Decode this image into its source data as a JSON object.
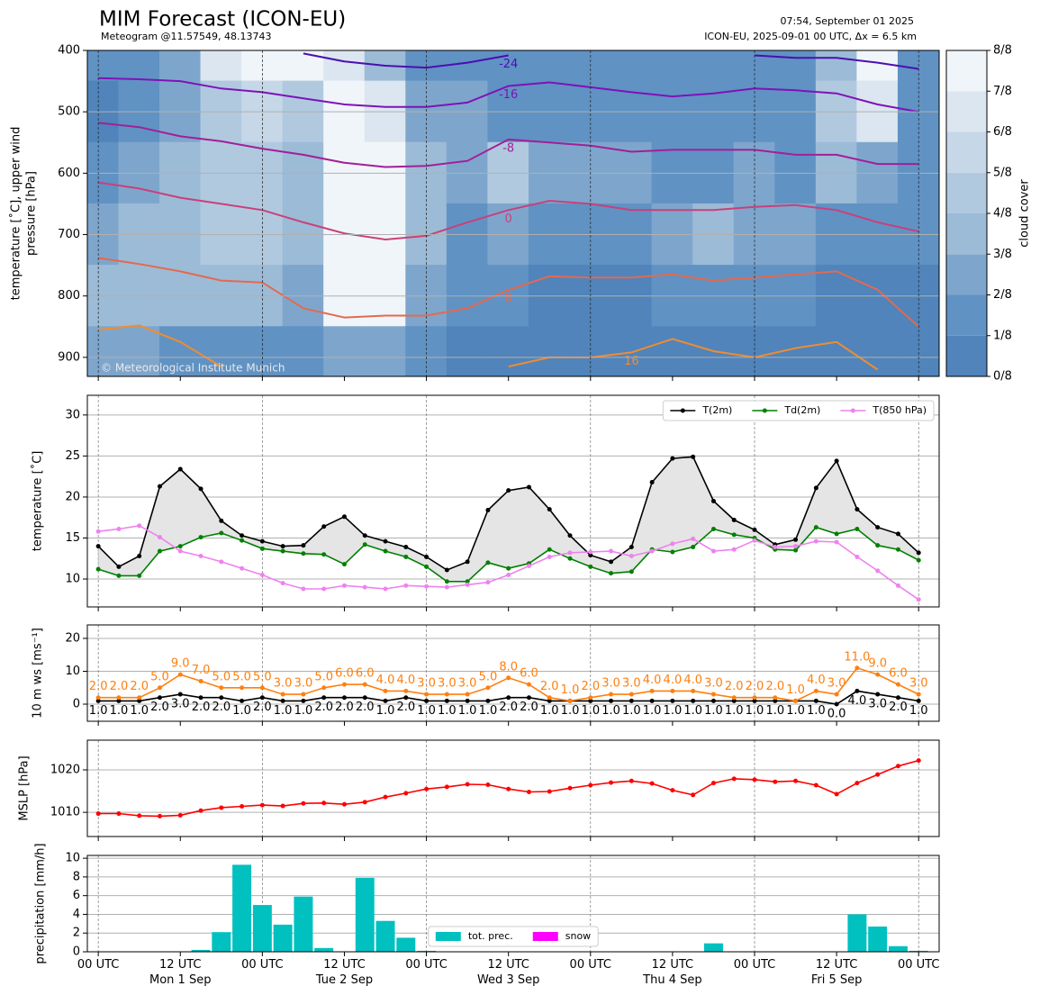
{
  "header": {
    "title": "MIM Forecast (ICON-EU)",
    "subtitle": "Meteogram @11.57549, 48.13743",
    "issued": "07:54, September 01 2025",
    "run": "ICON-EU, 2025-09-01 00 UTC, Δx = 6.5 km",
    "credit": "© Meteorological Institute Munich"
  },
  "chart_data": [
    {
      "type": "contour",
      "ylabel": [
        "temperature [˚C], upper wind",
        "pressure [hPa]"
      ],
      "x": [
        0,
        6,
        12,
        18,
        24,
        30,
        36,
        42,
        48,
        54,
        60,
        66,
        72,
        78,
        84,
        90,
        96,
        102,
        108,
        114,
        120
      ],
      "levels": [
        400,
        500,
        600,
        700,
        800,
        900
      ],
      "z": [
        [
          1,
          0,
          1,
          2,
          3,
          2
        ],
        [
          1,
          1,
          2,
          3,
          3,
          2
        ],
        [
          2,
          2,
          3,
          3,
          3,
          1
        ],
        [
          6,
          4,
          4,
          4,
          3,
          1
        ],
        [
          8,
          5,
          4,
          4,
          3,
          1
        ],
        [
          8,
          4,
          3,
          3,
          2,
          1
        ],
        [
          6,
          7,
          8,
          8,
          8,
          2
        ],
        [
          3,
          6,
          7,
          8,
          7,
          2
        ],
        [
          1,
          2,
          3,
          3,
          2,
          1
        ],
        [
          1,
          2,
          2,
          1,
          1,
          0
        ],
        [
          1,
          1,
          4,
          2,
          1,
          0
        ],
        [
          1,
          1,
          2,
          1,
          0,
          0
        ],
        [
          1,
          1,
          2,
          1,
          0,
          0
        ],
        [
          1,
          1,
          2,
          1,
          0,
          0
        ],
        [
          1,
          1,
          1,
          2,
          1,
          0
        ],
        [
          1,
          1,
          1,
          3,
          1,
          0
        ],
        [
          1,
          1,
          2,
          2,
          1,
          0
        ],
        [
          1,
          1,
          1,
          2,
          1,
          0
        ],
        [
          3,
          4,
          3,
          1,
          0,
          0
        ],
        [
          7,
          6,
          2,
          1,
          0,
          0
        ],
        [
          1,
          1,
          1,
          1,
          0,
          0
        ]
      ],
      "colorbar": {
        "label": "cloud cover",
        "clim": [
          0,
          8
        ],
        "ticks": [
          {
            "value": 0,
            "label": "0/8"
          },
          {
            "value": 1,
            "label": "1/8"
          },
          {
            "value": 2,
            "label": "2/8"
          },
          {
            "value": 3,
            "label": "3/8"
          },
          {
            "value": 4,
            "label": "4/8"
          },
          {
            "value": 5,
            "label": "5/8"
          },
          {
            "value": 6,
            "label": "6/8"
          },
          {
            "value": 7,
            "label": "7/8"
          },
          {
            "value": 8,
            "label": "8/8"
          }
        ],
        "colors": [
          "#5084bb",
          "#6092c4",
          "#7ea6cd",
          "#9cbbd7",
          "#b0c9df",
          "#c6d7e8",
          "#dce6f0",
          "#f0f5f9"
        ]
      },
      "isotherms": [
        {
          "level": -24,
          "color": "#4a0fb0",
          "values": [
            null,
            null,
            null,
            null,
            null,
            405,
            418,
            425,
            428,
            420,
            408,
            null,
            null,
            null,
            null,
            null,
            408,
            412,
            412,
            420,
            430
          ]
        },
        {
          "level": -16,
          "color": "#7f12b8",
          "values": [
            445,
            447,
            450,
            462,
            468,
            478,
            488,
            492,
            492,
            485,
            458,
            452,
            460,
            468,
            475,
            470,
            462,
            465,
            470,
            488,
            500
          ]
        },
        {
          "level": -8,
          "color": "#a21f99",
          "values": [
            518,
            525,
            540,
            548,
            560,
            570,
            583,
            590,
            588,
            580,
            545,
            550,
            555,
            565,
            562,
            562,
            562,
            570,
            570,
            585,
            585
          ]
        },
        {
          "level": 0,
          "color": "#c9407a",
          "values": [
            615,
            625,
            640,
            650,
            660,
            680,
            698,
            708,
            702,
            680,
            660,
            645,
            650,
            660,
            660,
            660,
            655,
            652,
            660,
            680,
            695
          ]
        },
        {
          "level": 8,
          "color": "#e4694f",
          "values": [
            738,
            748,
            760,
            775,
            778,
            820,
            835,
            832,
            832,
            820,
            790,
            768,
            770,
            770,
            765,
            775,
            770,
            765,
            760,
            790,
            850
          ]
        },
        {
          "level": 16,
          "color": "#f08c30",
          "values": [
            855,
            848,
            875,
            915,
            null,
            null,
            null,
            null,
            null,
            null,
            915,
            900,
            900,
            892,
            870,
            890,
            900,
            885,
            875,
            920,
            null
          ]
        }
      ],
      "xlim": [
        -1.6,
        123
      ],
      "xticks": [
        0,
        12,
        24,
        36,
        48,
        60,
        72,
        84,
        96,
        108,
        120
      ],
      "ylim": [
        931,
        400
      ],
      "yticks": [
        400,
        500,
        600,
        700,
        800,
        900
      ],
      "grid": true
    },
    {
      "type": "line",
      "ylabel": "temperature [˚C]",
      "x": [
        0,
        3,
        6,
        9,
        12,
        15,
        18,
        21,
        24,
        27,
        30,
        33,
        36,
        39,
        42,
        45,
        48,
        51,
        54,
        57,
        60,
        63,
        66,
        69,
        72,
        75,
        78,
        81,
        84,
        87,
        90,
        93,
        96,
        99,
        102,
        105,
        108,
        111,
        114,
        117,
        120
      ],
      "series": [
        {
          "name": "T(2m)",
          "color": "#000000",
          "values": [
            14.0,
            11.5,
            12.8,
            21.3,
            23.4,
            21.0,
            17.1,
            15.3,
            14.6,
            14.0,
            14.1,
            16.4,
            17.6,
            15.3,
            14.6,
            13.9,
            12.7,
            11.1,
            12.1,
            18.4,
            20.8,
            21.2,
            18.5,
            15.3,
            12.9,
            12.1,
            13.9,
            21.8,
            24.7,
            24.9,
            19.5,
            17.2,
            16.0,
            14.2,
            14.8,
            21.1,
            24.4,
            18.5,
            16.3,
            15.5,
            13.2
          ]
        },
        {
          "name": "Td(2m)",
          "color": "#008000",
          "values": [
            11.2,
            10.4,
            10.4,
            13.4,
            14.0,
            15.1,
            15.6,
            14.7,
            13.7,
            13.4,
            13.1,
            13.0,
            11.8,
            14.2,
            13.4,
            12.7,
            11.5,
            9.7,
            9.7,
            12.0,
            11.3,
            11.9,
            13.6,
            12.5,
            11.5,
            10.7,
            10.9,
            13.6,
            13.3,
            13.9,
            16.1,
            15.4,
            15.0,
            13.6,
            13.5,
            16.3,
            15.5,
            16.1,
            14.1,
            13.6,
            12.3
          ]
        },
        {
          "name": "T(850 hPa)",
          "color": "#ee82ee",
          "values": [
            15.8,
            16.1,
            16.5,
            15.1,
            13.4,
            12.8,
            12.1,
            11.3,
            10.5,
            9.5,
            8.8,
            8.8,
            9.2,
            9.0,
            8.8,
            9.2,
            9.1,
            9.0,
            9.3,
            9.6,
            10.5,
            11.6,
            12.7,
            13.2,
            13.3,
            13.4,
            12.8,
            13.4,
            14.3,
            14.9,
            13.4,
            13.6,
            14.7,
            13.9,
            14.0,
            14.6,
            14.5,
            12.7,
            11.0,
            9.2,
            7.5
          ]
        }
      ],
      "fill_between": true,
      "legend": "upper right",
      "xlim": [
        -1.6,
        123
      ],
      "xticks": [
        0,
        12,
        24,
        36,
        48,
        60,
        72,
        84,
        96,
        108,
        120
      ],
      "ylim": [
        6.6,
        32.4
      ],
      "yticks": [
        10,
        15,
        20,
        25,
        30
      ],
      "grid": true
    },
    {
      "type": "line",
      "ylabel": "10 m ws [ms⁻¹]",
      "x": [
        0,
        3,
        6,
        9,
        12,
        15,
        18,
        21,
        24,
        27,
        30,
        33,
        36,
        39,
        42,
        45,
        48,
        51,
        54,
        57,
        60,
        63,
        66,
        69,
        72,
        75,
        78,
        81,
        84,
        87,
        90,
        93,
        96,
        99,
        102,
        105,
        108,
        111,
        114,
        117,
        120
      ],
      "series": [
        {
          "color": "#000000",
          "values": [
            1,
            1,
            1,
            2,
            3,
            2,
            2,
            1,
            2,
            1,
            1,
            2,
            2,
            2,
            1,
            2,
            1,
            1,
            1,
            1,
            2,
            2,
            1,
            1,
            1,
            1,
            1,
            1,
            1,
            1,
            1,
            1,
            1,
            1,
            1,
            1,
            0,
            4,
            3,
            2,
            1
          ],
          "value_labels": [
            "1.0",
            "1.0",
            "1.0",
            "2.0",
            "3.0",
            "2.0",
            "2.0",
            "1.0",
            "2.0",
            "1.0",
            "1.0",
            "2.0",
            "2.0",
            "2.0",
            "1.0",
            "2.0",
            "1.0",
            "1.0",
            "1.0",
            "1.0",
            "2.0",
            "2.0",
            "1.0",
            "1.0",
            "1.0",
            "1.0",
            "1.0",
            "1.0",
            "1.0",
            "1.0",
            "1.0",
            "1.0",
            "1.0",
            "1.0",
            "1.0",
            "1.0",
            "0.0",
            "4.0",
            "3.0",
            "2.0",
            "1.0"
          ]
        },
        {
          "color": "#ff7f0e",
          "values": [
            2,
            2,
            2,
            5,
            9,
            7,
            5,
            5,
            5,
            3,
            3,
            5,
            6,
            6,
            4,
            4,
            3,
            3,
            3,
            5,
            8,
            6,
            2,
            1,
            2,
            3,
            3,
            4,
            4,
            4,
            3,
            2,
            2,
            2,
            1,
            4,
            3,
            11,
            9,
            6,
            3
          ],
          "value_labels": [
            "2.0",
            "2.0",
            "2.0",
            "5.0",
            "9.0",
            "7.0",
            "5.0",
            "5.0",
            "5.0",
            "3.0",
            "3.0",
            "5.0",
            "6.0",
            "6.0",
            "4.0",
            "4.0",
            "3.0",
            "3.0",
            "3.0",
            "5.0",
            "8.0",
            "6.0",
            "2.0",
            "1.0",
            "2.0",
            "3.0",
            "3.0",
            "4.0",
            "4.0",
            "4.0",
            "3.0",
            "2.0",
            "2.0",
            "2.0",
            "1.0",
            "4.0",
            "3.0",
            "11.0",
            "9.0",
            "6.0",
            "3.0"
          ]
        }
      ],
      "xlim": [
        -1.6,
        123
      ],
      "xticks": [
        0,
        12,
        24,
        36,
        48,
        60,
        72,
        84,
        96,
        108,
        120
      ],
      "ylim": [
        -5.2,
        24.1
      ],
      "yticks": [
        0,
        10,
        20
      ],
      "grid": true
    },
    {
      "type": "line",
      "ylabel": "MSLP [hPa]",
      "x": [
        0,
        3,
        6,
        9,
        12,
        15,
        18,
        21,
        24,
        27,
        30,
        33,
        36,
        39,
        42,
        45,
        48,
        51,
        54,
        57,
        60,
        63,
        66,
        69,
        72,
        75,
        78,
        81,
        84,
        87,
        90,
        93,
        96,
        99,
        102,
        105,
        108,
        111,
        114,
        117,
        120
      ],
      "series": [
        {
          "color": "#ff0000",
          "values": [
            1009.7,
            1009.7,
            1009.2,
            1009.1,
            1009.3,
            1010.4,
            1011.1,
            1011.4,
            1011.7,
            1011.5,
            1012.1,
            1012.2,
            1011.9,
            1012.4,
            1013.6,
            1014.5,
            1015.5,
            1016.0,
            1016.6,
            1016.5,
            1015.5,
            1014.8,
            1014.9,
            1015.7,
            1016.4,
            1017.0,
            1017.4,
            1016.8,
            1015.2,
            1014.1,
            1016.9,
            1017.9,
            1017.7,
            1017.2,
            1017.4,
            1016.4,
            1014.3,
            1016.9,
            1018.9,
            1020.9,
            1022.2
          ]
        }
      ],
      "xlim": [
        -1.6,
        123
      ],
      "xticks": [
        0,
        12,
        24,
        36,
        48,
        60,
        72,
        84,
        96,
        108,
        120
      ],
      "ylim": [
        1004.3,
        1027
      ],
      "yticks": [
        1010,
        1020
      ],
      "grid": true
    },
    {
      "type": "bar",
      "ylabel": "precipitation [mm/h]",
      "x": [
        0,
        3,
        6,
        9,
        12,
        15,
        18,
        21,
        24,
        27,
        30,
        33,
        36,
        39,
        42,
        45,
        48,
        51,
        54,
        57,
        60,
        63,
        66,
        69,
        72,
        75,
        78,
        81,
        84,
        87,
        90,
        93,
        96,
        99,
        102,
        105,
        108,
        111,
        114,
        117,
        120
      ],
      "series": [
        {
          "name": "tot. prec.",
          "color": "#00c0c0",
          "values": [
            0,
            0,
            0,
            0,
            0,
            0.2,
            2.1,
            9.3,
            5.0,
            2.9,
            5.9,
            0.4,
            0,
            7.9,
            3.3,
            1.5,
            0.1,
            0,
            0,
            0,
            0,
            0,
            0,
            0,
            0,
            0,
            0,
            0,
            0,
            0,
            0.9,
            0,
            0,
            0,
            0,
            0,
            0,
            4.0,
            2.7,
            0.6,
            0.1
          ]
        },
        {
          "name": "snow",
          "color": "#ff00ff",
          "values": [
            0,
            0,
            0,
            0,
            0,
            0,
            0,
            0,
            0,
            0,
            0,
            0,
            0,
            0,
            0,
            0,
            0,
            0,
            0,
            0,
            0,
            0,
            0,
            0,
            0,
            0,
            0,
            0,
            0,
            0,
            0,
            0,
            0,
            0,
            0,
            0,
            0,
            0,
            0,
            0,
            0
          ]
        }
      ],
      "legend": "lower center",
      "xlim": [
        -1.6,
        123
      ],
      "xticks": [
        {
          "value": 0,
          "label": "00 UTC"
        },
        {
          "value": 12,
          "label": "12 UTC\nMon 1 Sep"
        },
        {
          "value": 24,
          "label": "00 UTC"
        },
        {
          "value": 36,
          "label": "12 UTC\nTue 2 Sep"
        },
        {
          "value": 48,
          "label": "00 UTC"
        },
        {
          "value": 60,
          "label": "12 UTC\nWed 3 Sep"
        },
        {
          "value": 72,
          "label": "00 UTC"
        },
        {
          "value": 84,
          "label": "12 UTC\nThu 4 Sep"
        },
        {
          "value": 96,
          "label": "00 UTC"
        },
        {
          "value": 108,
          "label": "12 UTC\nFri 5 Sep"
        },
        {
          "value": 120,
          "label": "00 UTC"
        }
      ],
      "ylim": [
        0,
        10.3
      ],
      "yticks": [
        0,
        2,
        4,
        6,
        8,
        10
      ],
      "grid": true
    }
  ]
}
